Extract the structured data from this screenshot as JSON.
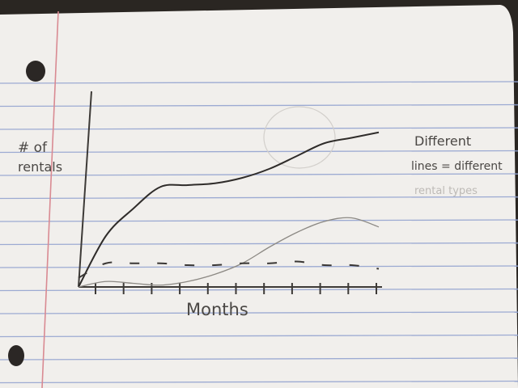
{
  "chart_data": {
    "type": "line",
    "title": "",
    "xlabel": "Months",
    "ylabel": "# of rentals",
    "legend_note": [
      "Different",
      "lines = different",
      "rental types"
    ],
    "x_ticks": 11,
    "x": [
      0,
      1,
      2,
      3,
      4,
      5,
      6,
      7,
      8,
      9,
      10,
      11
    ],
    "ylim": [
      0,
      100
    ],
    "grid": false,
    "series": [
      {
        "style": "solid",
        "values": [
          0,
          28,
          43,
          55,
          56,
          57,
          60,
          65,
          72,
          79,
          82,
          85
        ]
      },
      {
        "style": "faint",
        "values": [
          0,
          3,
          2,
          1,
          3,
          7,
          13,
          22,
          30,
          36,
          38,
          33
        ]
      },
      {
        "style": "dashed",
        "values": [
          5,
          13,
          13,
          13,
          12,
          12,
          13,
          13,
          14,
          12,
          12,
          10
        ]
      }
    ]
  }
}
